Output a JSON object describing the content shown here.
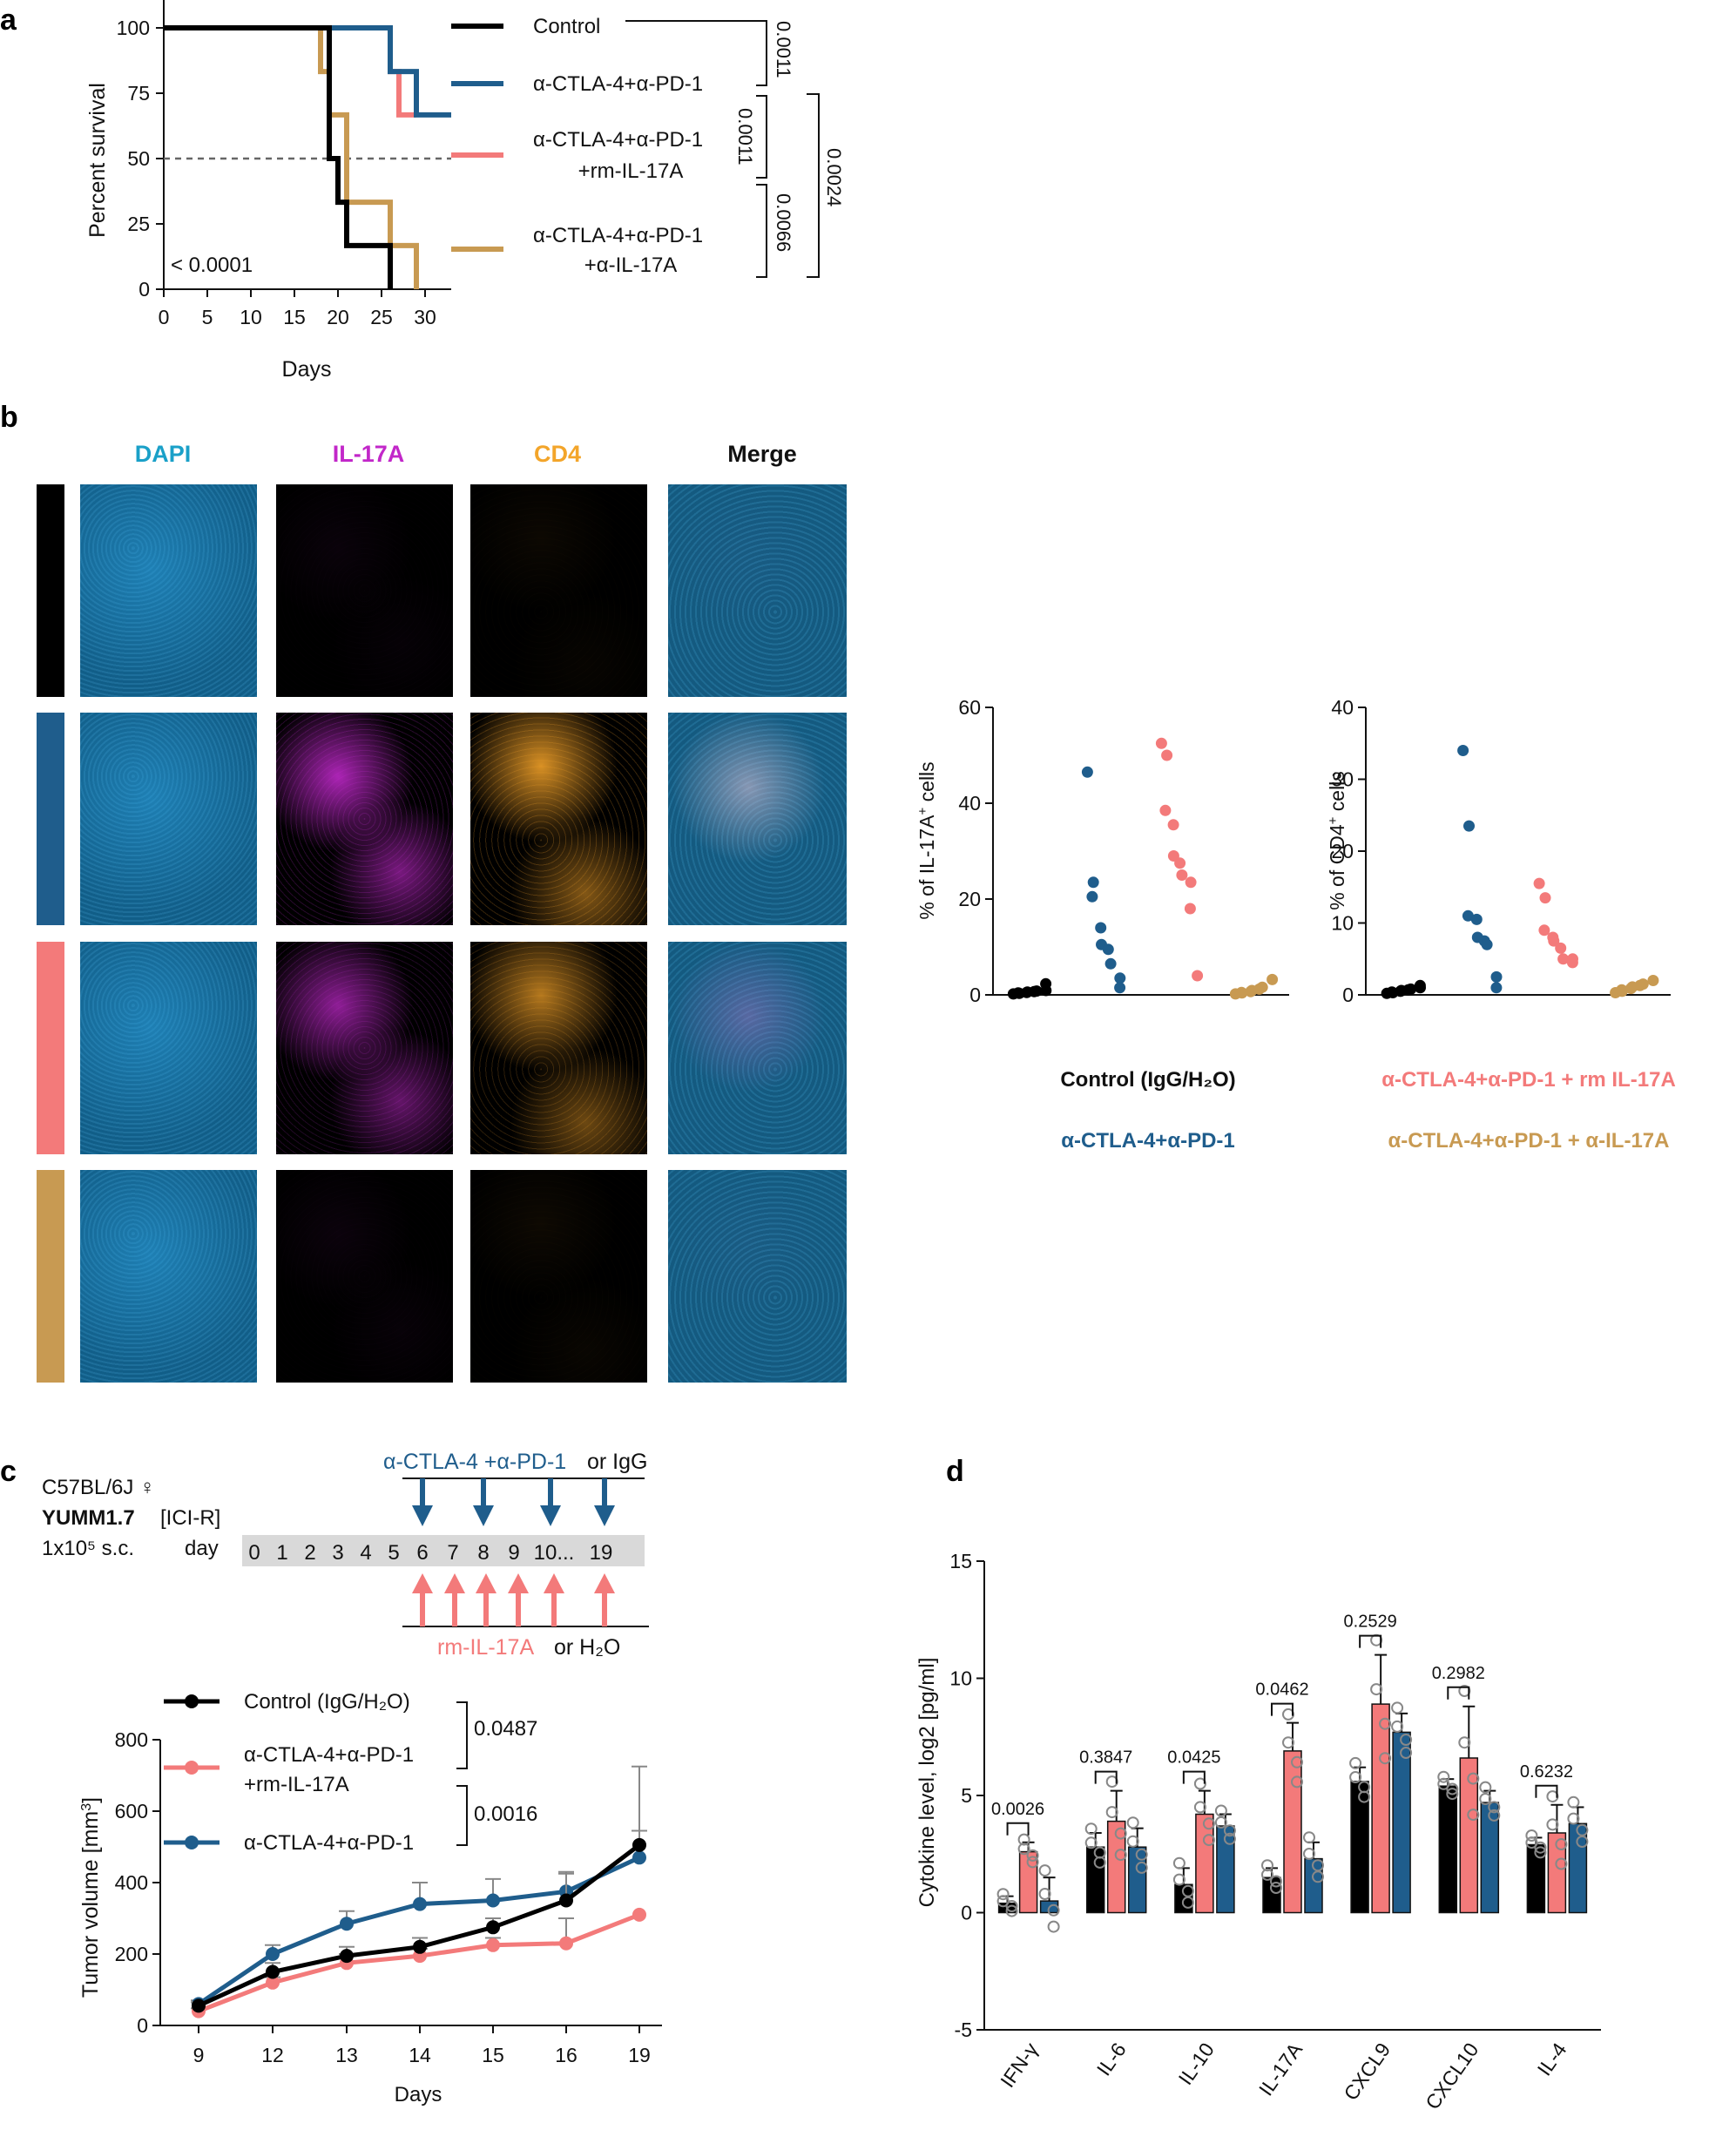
{
  "panel_labels": [
    "a",
    "b",
    "c",
    "d"
  ],
  "colors": {
    "control": "#000000",
    "combo": "#1f5d8c",
    "combo_rm": "#f37a7a",
    "combo_anti": "#c89a52"
  },
  "chart_data": [
    {
      "id": "survival",
      "type": "line",
      "step": true,
      "xlabel": "Days",
      "ylabel": "Percent survival",
      "xlim": [
        0,
        33
      ],
      "ylim": [
        0,
        100
      ],
      "xticks": [
        "0",
        "5",
        "10",
        "15",
        "20",
        "25",
        "30"
      ],
      "yticks": [
        "0",
        "25",
        "50",
        "75",
        "100"
      ],
      "reference_line": 50,
      "pvalue_overall": "< 0.0001",
      "series": [
        {
          "name": "Control",
          "x": [
            0,
            19,
            20,
            21,
            26
          ],
          "y": [
            100,
            50,
            33.3,
            16.7,
            0
          ]
        },
        {
          "name": "α-CTLA-4+α-PD-1",
          "x": [
            0,
            26,
            29,
            33
          ],
          "y": [
            100,
            83.3,
            66.7,
            66.7
          ]
        },
        {
          "name": "α-CTLA-4+α-PD-1 +rm-IL-17A",
          "x": [
            0,
            26,
            27,
            29
          ],
          "y": [
            100,
            83.3,
            66.7,
            66.7
          ]
        },
        {
          "name": "α-CTLA-4+α-PD-1 +α-IL-17A",
          "x": [
            0,
            18,
            19,
            21,
            26,
            29
          ],
          "y": [
            100,
            83.3,
            66.7,
            33.3,
            16.7,
            0
          ]
        }
      ],
      "legend_labels": [
        "Control",
        "α-CTLA-4+α-PD-1",
        "α-CTLA-4+α-PD-1",
        "+rm-IL-17A",
        "α-CTLA-4+α-PD-1",
        "+α-IL-17A"
      ],
      "comparisons": [
        "0.0011",
        "0.0011",
        "0.0066",
        "0.0024"
      ]
    },
    {
      "id": "il17a_dots",
      "type": "scatter",
      "ylabel": "% of IL-17A+ cells",
      "ylim": [
        0,
        60
      ],
      "yticks": [
        "0",
        "20",
        "40",
        "60"
      ],
      "groups": [
        {
          "name": "Control (IgG/H2O)",
          "values": [
            0.2,
            0.3,
            0.4,
            0.5,
            0.6,
            0.7,
            0.8,
            0.9,
            2.3
          ]
        },
        {
          "name": "α-CTLA-4+α-PD-1",
          "values": [
            46.5,
            23.5,
            20.5,
            14,
            10.5,
            9.5,
            6.5,
            3.5,
            1.5
          ]
        },
        {
          "name": "α-CTLA-4+α-PD-1 + rm IL-17A",
          "values": [
            52.5,
            50,
            38.5,
            35.5,
            29,
            27.5,
            25,
            23.5,
            18,
            4
          ]
        },
        {
          "name": "α-CTLA-4+α-PD-1 + α-IL-17A",
          "values": [
            0.2,
            0.4,
            0.5,
            0.7,
            0.9,
            1.2,
            1.6,
            3.2
          ]
        }
      ]
    },
    {
      "id": "cd4_dots",
      "type": "scatter",
      "ylabel": "% of CD4+ cells",
      "ylim": [
        0,
        40
      ],
      "yticks": [
        "0",
        "10",
        "20",
        "30",
        "40"
      ],
      "groups": [
        {
          "name": "Control (IgG/H2O)",
          "values": [
            0.2,
            0.3,
            0.4,
            0.5,
            0.6,
            0.7,
            0.8,
            1.0,
            1.3
          ]
        },
        {
          "name": "α-CTLA-4+α-PD-1",
          "values": [
            34,
            23.5,
            11,
            10.5,
            8,
            7.5,
            7,
            2.5,
            1
          ]
        },
        {
          "name": "α-CTLA-4+α-PD-1 + rm IL-17A",
          "values": [
            15.5,
            13.5,
            9,
            8,
            7.5,
            6.5,
            5,
            5,
            4.5
          ]
        },
        {
          "name": "α-CTLA-4+α-PD-1 + α-IL-17A",
          "values": [
            0.3,
            0.5,
            0.7,
            0.9,
            1.1,
            1.3,
            1.5,
            2.0
          ]
        }
      ]
    },
    {
      "id": "tumor_volume",
      "type": "line",
      "xlabel": "Days",
      "ylabel": "Tumor volume [mm3]",
      "categories": [
        "9",
        "12",
        "13",
        "14",
        "15",
        "16",
        "19"
      ],
      "ylim": [
        0,
        800
      ],
      "yticks": [
        "0",
        "200",
        "400",
        "600",
        "800"
      ],
      "series": [
        {
          "name": "Control (IgG/H2O)",
          "values": [
            55,
            150,
            195,
            220,
            275,
            350,
            505
          ],
          "err": [
            10,
            25,
            25,
            25,
            25,
            80,
            220
          ]
        },
        {
          "name": "α-CTLA-4+α-PD-1 +rm-IL-17A",
          "values": [
            40,
            120,
            175,
            195,
            225,
            230,
            310
          ],
          "err": [
            8,
            15,
            25,
            20,
            20,
            70,
            0
          ]
        },
        {
          "name": "α-CTLA-4+α-PD-1",
          "values": [
            60,
            200,
            285,
            340,
            350,
            375,
            470
          ],
          "err": [
            10,
            25,
            35,
            60,
            60,
            50,
            75
          ]
        }
      ],
      "legend_labels": [
        "Control (IgG/H₂O)",
        "α-CTLA-4+α-PD-1",
        "+rm-IL-17A",
        "α-CTLA-4+α-PD-1"
      ],
      "pvalues": [
        "0.0487",
        "0.0016"
      ]
    },
    {
      "id": "cytokines",
      "type": "bar",
      "ylabel": "Cytokine level, log2 [pg/ml]",
      "ylim": [
        -5,
        15
      ],
      "yticks": [
        "-5",
        "0",
        "5",
        "10",
        "15"
      ],
      "categories": [
        "IFN-γ",
        "IL-6",
        "IL-10",
        "IL-17A",
        "CXCL9",
        "CXCL10",
        "IL-4"
      ],
      "series": [
        {
          "name": "Control",
          "values": [
            0.4,
            2.8,
            1.2,
            1.5,
            5.6,
            5.4,
            2.9
          ],
          "err": [
            0.3,
            0.6,
            0.7,
            0.4,
            0.6,
            0.3,
            0.3
          ]
        },
        {
          "name": "α-CTLA-4+α-PD-1 +rm-IL-17A",
          "values": [
            2.6,
            3.9,
            4.2,
            6.9,
            8.9,
            6.6,
            3.4
          ],
          "err": [
            0.4,
            1.3,
            1.0,
            1.2,
            2.1,
            2.2,
            1.2
          ]
        },
        {
          "name": "α-CTLA-4+α-PD-1",
          "values": [
            0.5,
            2.8,
            3.7,
            2.3,
            7.7,
            4.7,
            3.8
          ],
          "err": [
            1.0,
            0.8,
            0.5,
            0.7,
            0.8,
            0.5,
            0.7
          ]
        }
      ],
      "pvalues": [
        "0.0026",
        "0.3847",
        "0.0425",
        "0.0462",
        "0.2529",
        "0.2982",
        "0.6232"
      ]
    }
  ],
  "imaging": {
    "headers": [
      "DAPI",
      "IL-17A",
      "CD4",
      "Merge"
    ],
    "legend": [
      "Control (IgG/H₂O)",
      "α-CTLA-4+α-PD-1",
      "α-CTLA-4+α-PD-1 + rm IL-17A",
      "α-CTLA-4+α-PD-1 + α-IL-17A"
    ]
  },
  "schedule": {
    "mouse": "C57BL/6J ♀",
    "model": "YUMM1.7",
    "model_tag": "[ICI-R]",
    "dose": "1x10⁵ s.c.",
    "day_label": "day",
    "days": [
      "0",
      "1",
      "2",
      "3",
      "4",
      "5",
      "6",
      "7",
      "8",
      "9",
      "10...",
      "19"
    ],
    "top_treatment": "α-CTLA-4 +α-PD-1",
    "top_or": "or IgG",
    "bottom_treatment": "rm-IL-17A",
    "bottom_or": "or H₂O"
  }
}
